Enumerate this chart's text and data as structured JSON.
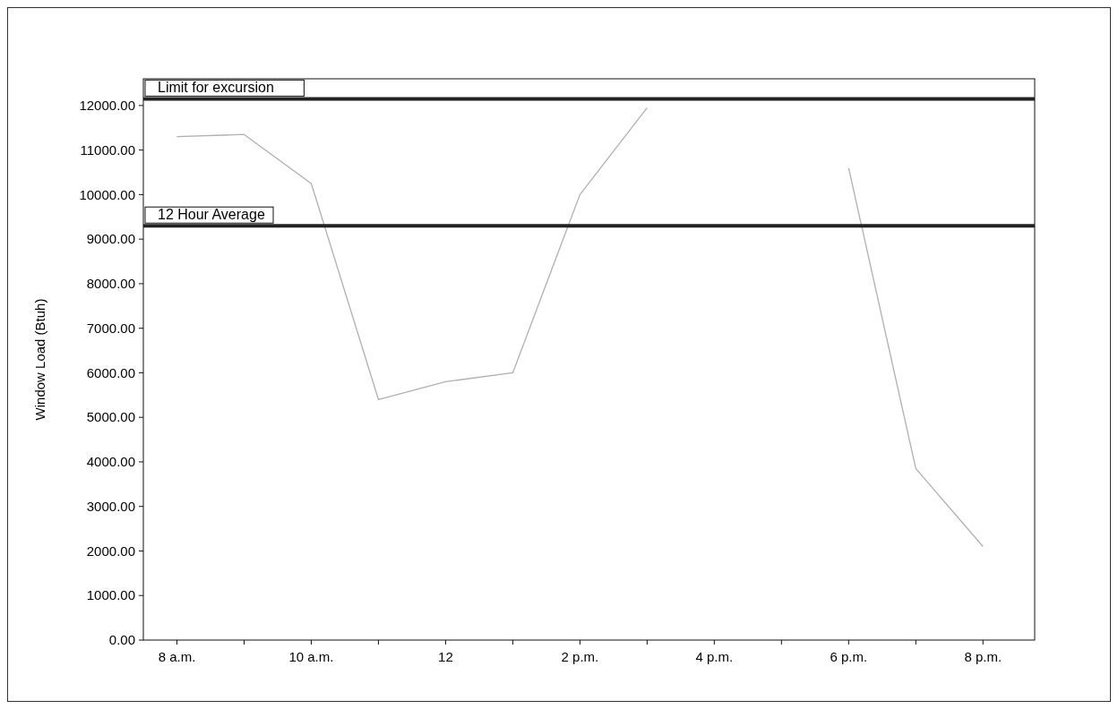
{
  "chart_data": {
    "type": "line",
    "ylabel": "Window Load (Btuh)",
    "categories": [
      "8 a.m.",
      null,
      "10 a.m.",
      null,
      "12",
      null,
      "2 p.m.",
      null,
      "4 p.m.",
      null,
      "6 p.m.",
      null,
      "8 p.m."
    ],
    "series": [
      {
        "color": "#b0b0b0",
        "values": [
          11300,
          11350,
          10250,
          5400,
          5800,
          6000,
          10000,
          11950,
          null,
          null,
          10600,
          3850,
          2100
        ]
      }
    ],
    "ylim": [
      0,
      12600
    ],
    "yticks": [
      {
        "value": 0,
        "label": "0.00"
      },
      {
        "value": 1000,
        "label": "1000.00"
      },
      {
        "value": 2000,
        "label": "2000.00"
      },
      {
        "value": 3000,
        "label": "3000.00"
      },
      {
        "value": 4000,
        "label": "4000.00"
      },
      {
        "value": 5000,
        "label": "5000.00"
      },
      {
        "value": 6000,
        "label": "6000.00"
      },
      {
        "value": 7000,
        "label": "7000.00"
      },
      {
        "value": 8000,
        "label": "8000.00"
      },
      {
        "value": 9000,
        "label": "9000.00"
      },
      {
        "value": 10000,
        "label": "10000.00"
      },
      {
        "value": 11000,
        "label": "11000.00"
      },
      {
        "value": 12000,
        "label": "12000.00"
      }
    ],
    "ref_lines": [
      {
        "axis": "y",
        "value": 12150,
        "label": "Limit for excursion",
        "color": "#222222"
      },
      {
        "axis": "y",
        "value": 9300,
        "label": "12 Hour Average",
        "color": "#222222"
      }
    ],
    "grid": false,
    "marker": "none",
    "line_style": "solid"
  }
}
